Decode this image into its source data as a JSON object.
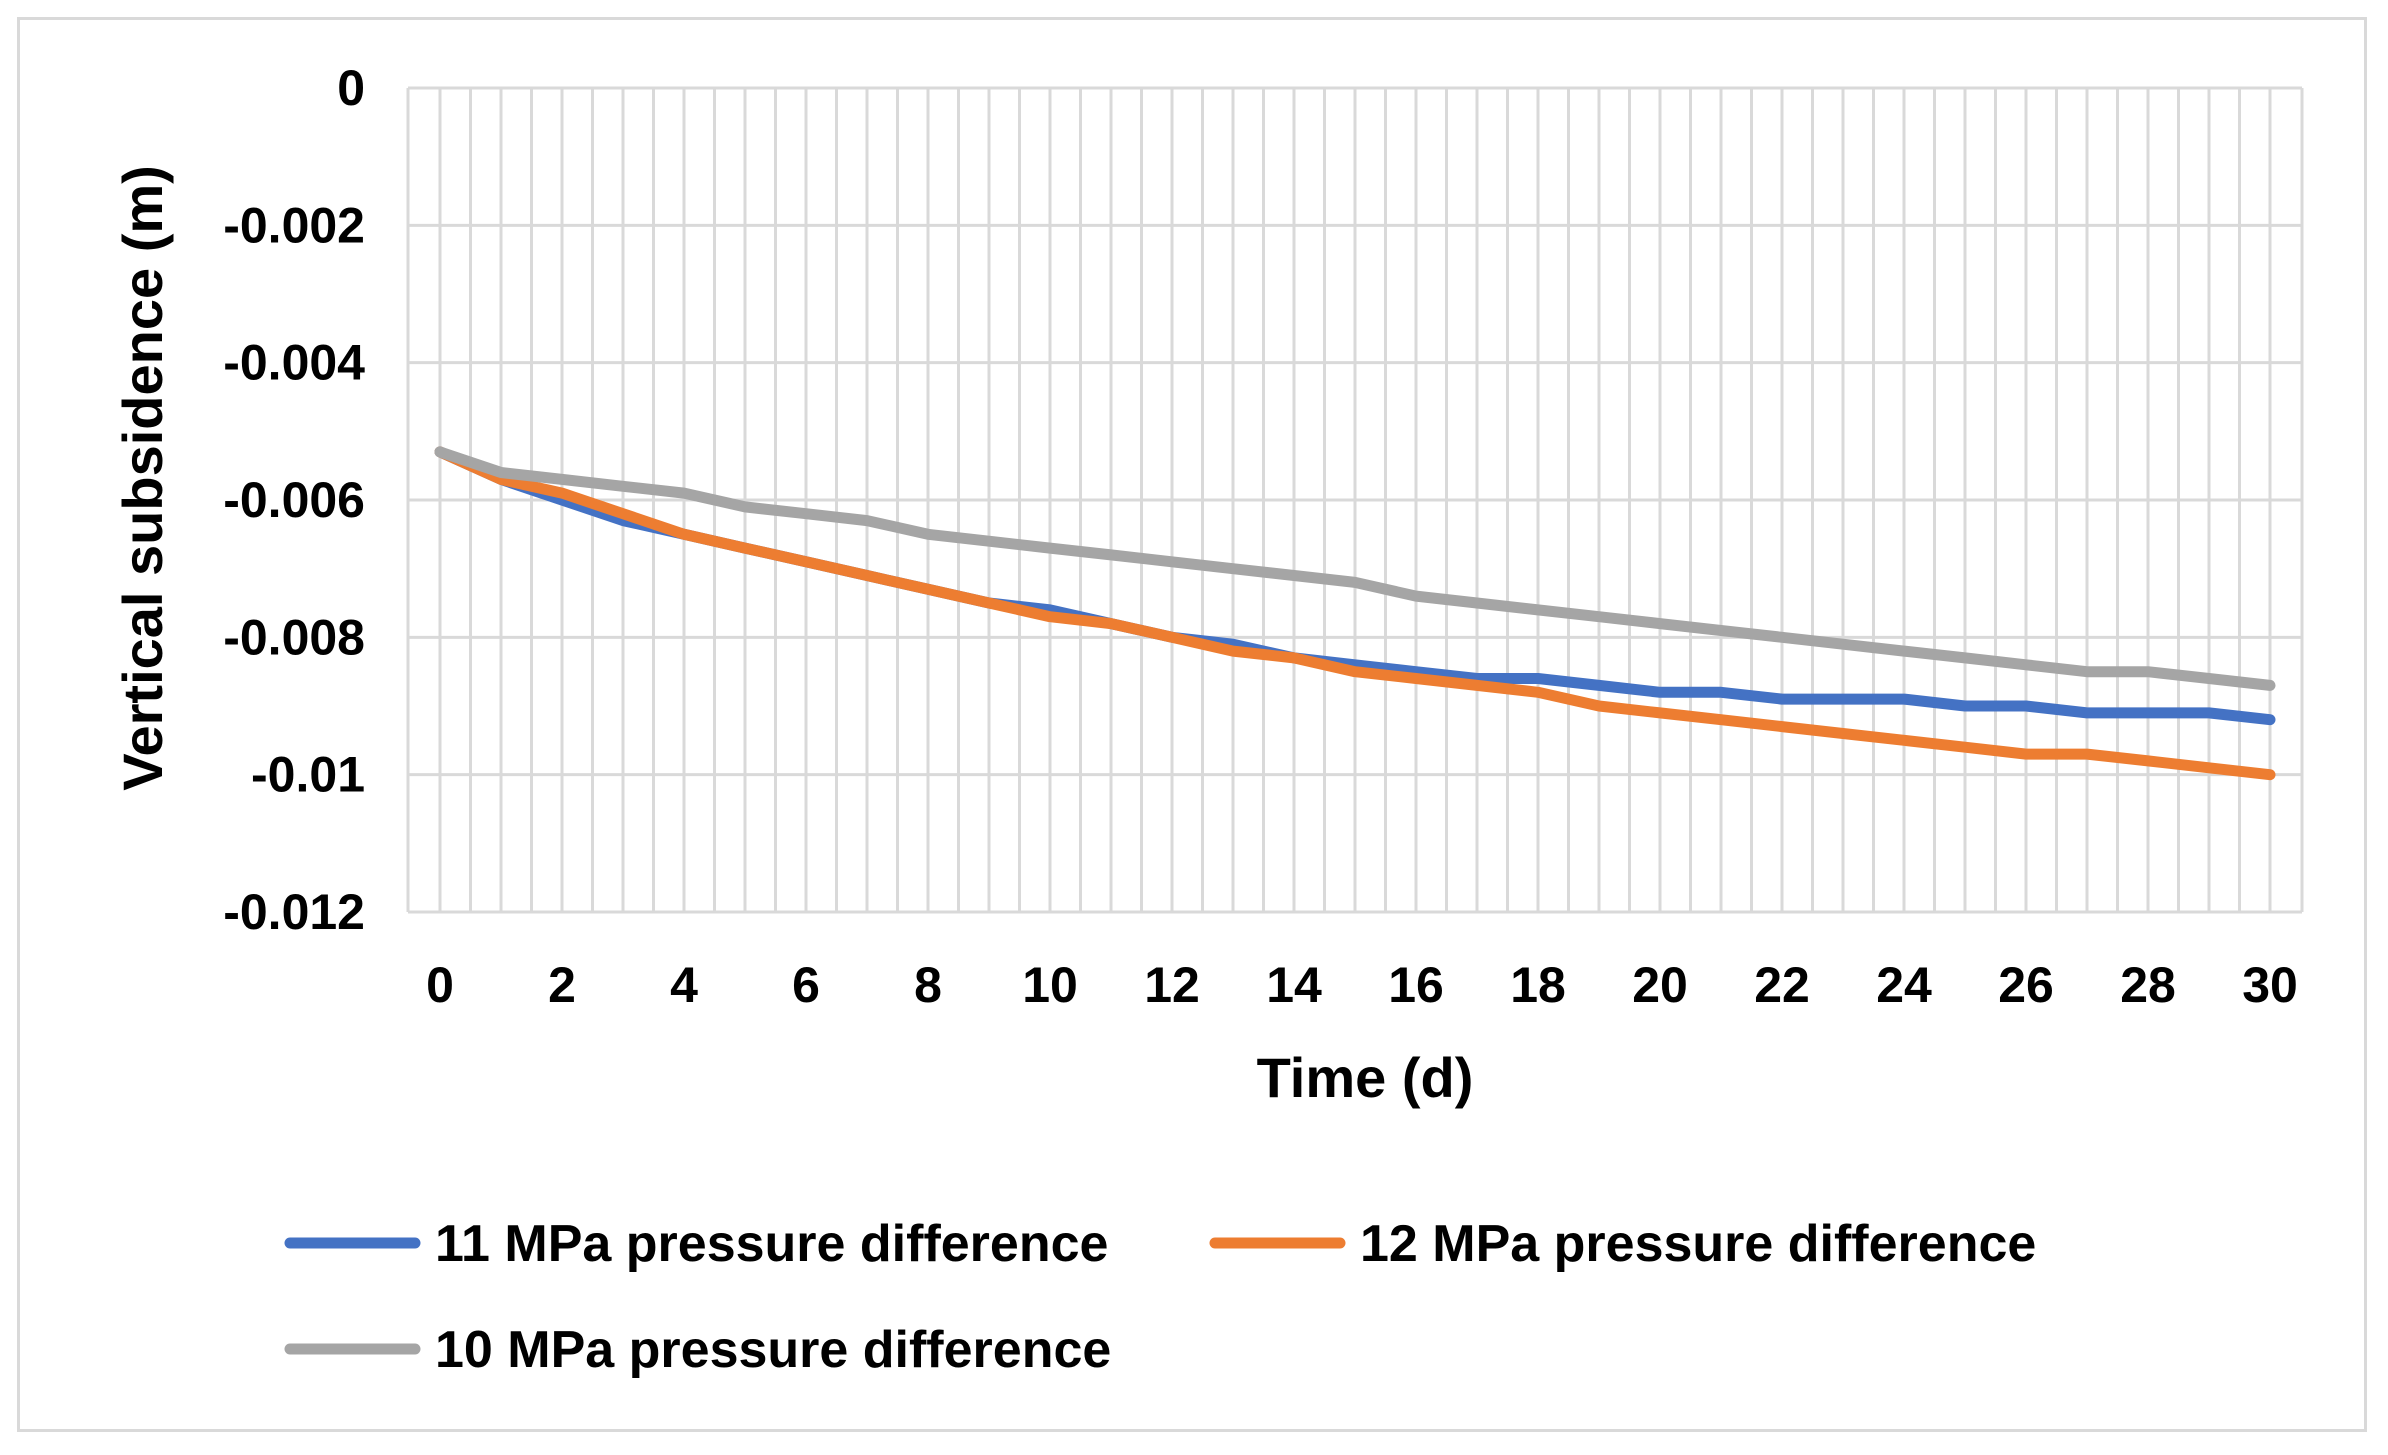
{
  "chart_data": {
    "type": "line",
    "title": "",
    "xlabel": "Time (d)",
    "ylabel": "Vertical subsidence (m)",
    "xlim": [
      0,
      30
    ],
    "ylim": [
      -0.012,
      0
    ],
    "x_ticks": [
      0,
      2,
      4,
      6,
      8,
      10,
      12,
      14,
      16,
      18,
      20,
      22,
      24,
      26,
      28,
      30
    ],
    "y_ticks": [
      0,
      -0.002,
      -0.004,
      -0.006,
      -0.008,
      -0.01,
      -0.012
    ],
    "x_tick_labels": [
      "0",
      "2",
      "4",
      "6",
      "8",
      "10",
      "12",
      "14",
      "16",
      "18",
      "20",
      "22",
      "24",
      "26",
      "28",
      "30"
    ],
    "y_tick_labels": [
      "0",
      "-0.002",
      "-0.004",
      "-0.006",
      "-0.008",
      "-0.01",
      "-0.012"
    ],
    "grid": true,
    "legend_position": "bottom",
    "x": [
      0,
      1,
      2,
      3,
      4,
      5,
      6,
      7,
      8,
      9,
      10,
      11,
      12,
      13,
      14,
      15,
      16,
      17,
      18,
      19,
      20,
      21,
      22,
      23,
      24,
      25,
      26,
      27,
      28,
      29,
      30
    ],
    "series": [
      {
        "name": "11 MPa pressure difference",
        "color": "#4472C4",
        "values": [
          -0.0053,
          -0.0057,
          -0.006,
          -0.0063,
          -0.0065,
          -0.0067,
          -0.0069,
          -0.0071,
          -0.0073,
          -0.0075,
          -0.0076,
          -0.0078,
          -0.008,
          -0.0081,
          -0.0083,
          -0.0084,
          -0.0085,
          -0.0086,
          -0.0086,
          -0.0087,
          -0.0088,
          -0.0088,
          -0.0089,
          -0.0089,
          -0.0089,
          -0.009,
          -0.009,
          -0.0091,
          -0.0091,
          -0.0091,
          -0.0092
        ]
      },
      {
        "name": "12 MPa pressure difference",
        "color": "#ED7D31",
        "values": [
          -0.0053,
          -0.0057,
          -0.0059,
          -0.0062,
          -0.0065,
          -0.0067,
          -0.0069,
          -0.0071,
          -0.0073,
          -0.0075,
          -0.0077,
          -0.0078,
          -0.008,
          -0.0082,
          -0.0083,
          -0.0085,
          -0.0086,
          -0.0087,
          -0.0088,
          -0.009,
          -0.0091,
          -0.0092,
          -0.0093,
          -0.0094,
          -0.0095,
          -0.0096,
          -0.0097,
          -0.0097,
          -0.0098,
          -0.0099,
          -0.01
        ]
      },
      {
        "name": "10 MPa pressure difference",
        "color": "#A5A5A5",
        "values": [
          -0.0053,
          -0.0056,
          -0.0057,
          -0.0058,
          -0.0059,
          -0.0061,
          -0.0062,
          -0.0063,
          -0.0065,
          -0.0066,
          -0.0067,
          -0.0068,
          -0.0069,
          -0.007,
          -0.0071,
          -0.0072,
          -0.0074,
          -0.0075,
          -0.0076,
          -0.0077,
          -0.0078,
          -0.0079,
          -0.008,
          -0.0081,
          -0.0082,
          -0.0083,
          -0.0084,
          -0.0085,
          -0.0085,
          -0.0086,
          -0.0087
        ]
      }
    ]
  }
}
